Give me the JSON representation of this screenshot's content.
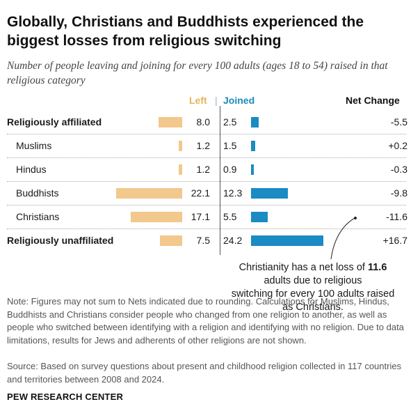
{
  "title": "Globally, Christians and Buddhists experienced the biggest losses from religious switching",
  "subtitle": "Number of people leaving and joining for every 100 adults (ages 18 to 54) raised in that religious category",
  "headers": {
    "left": "Left",
    "sep": "|",
    "joined": "Joined",
    "net": "Net Change"
  },
  "colors": {
    "left": "#f2c88d",
    "joined": "#1a8bc3",
    "left_header": "#e8b25a",
    "joined_header": "#1b8bbf"
  },
  "chart_data": {
    "type": "bar",
    "title": "Globally, Christians and Buddhists experienced the biggest losses from religious switching",
    "categories": [
      "Religiously affiliated",
      "Muslims",
      "Hindus",
      "Buddhists",
      "Christians",
      "Religiously unaffiliated"
    ],
    "series": [
      {
        "name": "Left",
        "values": [
          8.0,
          1.2,
          1.2,
          22.1,
          17.1,
          7.5
        ]
      },
      {
        "name": "Joined",
        "values": [
          2.5,
          1.5,
          0.9,
          12.3,
          5.5,
          24.2
        ]
      }
    ],
    "net_change": [
      "-5.5",
      "+0.2",
      "-0.3",
      "-9.8",
      "-11.6",
      "+16.7"
    ],
    "left_labels": [
      "8.0",
      "1.2",
      "1.2",
      "22.1",
      "17.1",
      "7.5"
    ],
    "joined_labels": [
      "2.5",
      "1.5",
      "0.9",
      "12.3",
      "5.5",
      "24.2"
    ],
    "bold_rows": [
      true,
      false,
      false,
      false,
      false,
      true
    ],
    "xlabel": "",
    "ylabel": "",
    "annotation": "Christianity has a net loss of 11.6 adults due to religious switching for every 100 adults raised as Christians."
  },
  "annotation": {
    "line1_pre": "Christianity has a net loss of ",
    "line1_bold": "11.6",
    "line1_post": " adults due to religious",
    "line2": "switching for every 100 adults raised as Christians."
  },
  "note": "Note: Figures may not sum to Nets indicated due to rounding. Calculations for Muslims, Hindus, Buddhists and Christians consider people who changed from one religion to another, as well as people who switched between identifying with a religion and identifying with no religion. Due to data limitations, results for Jews and adherents of other religions are not shown.",
  "source": "Source: Based on survey questions about present and childhood religion collected in 117 countries and territories between 2008 and 2024.",
  "brand": "PEW RESEARCH CENTER"
}
